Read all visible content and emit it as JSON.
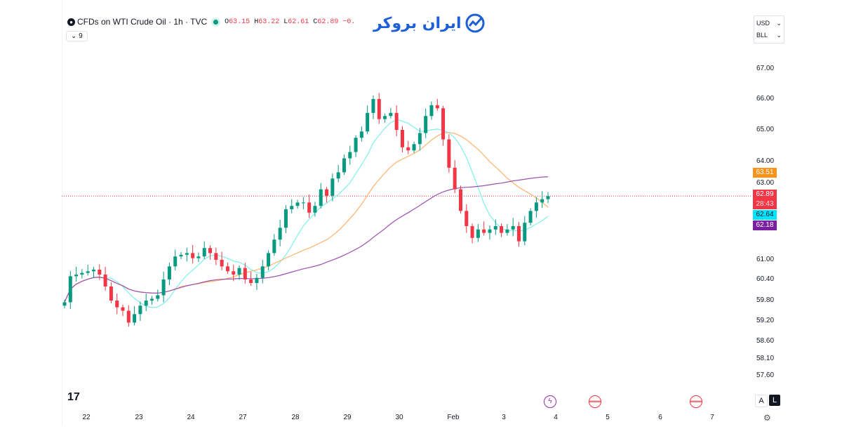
{
  "header": {
    "title": "CFDs on WTI Crude Oil · 1h · TVC",
    "o_label": "O",
    "o": "63.15",
    "h_label": "H",
    "h": "63.22",
    "l_label": "L",
    "l": "62.61",
    "c_label": "C",
    "c": "62.89",
    "change": "−0.",
    "collapse": "9"
  },
  "logo": {
    "text": "ایران بروکر"
  },
  "units": {
    "currency": "USD",
    "unit": "BLL"
  },
  "scale_buttons": {
    "auto": "A",
    "log": "L"
  },
  "colors": {
    "up": "#089981",
    "down": "#f23645",
    "ma_fast": "#7ff0ec",
    "ma_mid": "#ffb26b",
    "ma_slow": "#9c4fb0",
    "last_price": "#f23645"
  },
  "chart_data": {
    "type": "candlestick",
    "symbol": "CFDs on WTI Crude Oil",
    "interval": "1h",
    "exchange": "TVC",
    "y_ticks": [
      "67.00",
      "66.00",
      "65.00",
      "64.00",
      "63.00",
      "61.00",
      "60.40",
      "59.80",
      "59.20",
      "58.60",
      "58.10",
      "57.60"
    ],
    "x_ticks": [
      "22",
      "23",
      "24",
      "27",
      "28",
      "29",
      "30",
      "Feb",
      "3",
      "4",
      "5",
      "6",
      "7"
    ],
    "closes": [
      59.75,
      60.5,
      60.55,
      60.6,
      60.65,
      60.7,
      60.55,
      60.2,
      59.8,
      59.6,
      59.5,
      59.15,
      59.4,
      59.65,
      59.8,
      59.85,
      59.95,
      60.4,
      60.8,
      61.1,
      61.15,
      61.2,
      61.05,
      61.1,
      61.35,
      61.2,
      61.0,
      60.8,
      60.65,
      60.55,
      60.75,
      60.4,
      60.3,
      60.45,
      60.8,
      61.2,
      61.6,
      61.95,
      62.5,
      62.6,
      62.7,
      62.7,
      62.4,
      62.6,
      63.1,
      62.9,
      63.45,
      63.65,
      64.1,
      64.3,
      64.75,
      64.95,
      65.55,
      66.0,
      65.35,
      65.45,
      65.55,
      65.0,
      64.45,
      64.35,
      64.55,
      64.9,
      65.45,
      65.8,
      65.7,
      64.7,
      63.8,
      63.1,
      62.45,
      62.0,
      61.65,
      61.9,
      61.8,
      61.9,
      62.0,
      61.8,
      61.9,
      62.0,
      61.55,
      62.1,
      62.45,
      62.7,
      62.8,
      62.89
    ],
    "price_tags": [
      {
        "value": "63.51",
        "color": "#f7931a",
        "text": "63.51"
      },
      {
        "value": "62.89",
        "color": "#f23645",
        "text": "62.89",
        "countdown": "28:43"
      },
      {
        "value": "62.64",
        "color": "#00e5ff",
        "text": "62.64"
      },
      {
        "value": "62.18",
        "color": "#7b1fa2",
        "text": "62.18"
      }
    ],
    "last_price": 62.89,
    "moving_average_last": {
      "fast": 62.64,
      "mid": 63.51,
      "slow": 62.18
    },
    "events": [
      {
        "type": "earnings-flash",
        "date": "4"
      },
      {
        "type": "us-economic",
        "date": "5"
      },
      {
        "type": "us-economic",
        "date": "7"
      }
    ]
  }
}
